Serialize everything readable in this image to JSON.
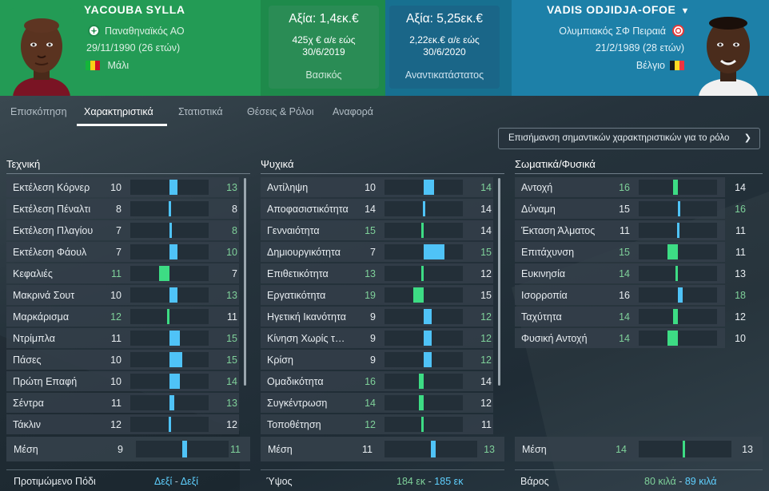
{
  "left_player": {
    "name": "YACOUBA SYLLA",
    "club": "Παναθηναϊκός ΑΟ",
    "dob": "29/11/1990 (26 ετών)",
    "nation": "Μάλι",
    "value": "Αξία: 1,4εκ.€",
    "wage_line1": "425χ € α/ε εώς",
    "wage_line2": "30/6/2019",
    "role": "Βασικός",
    "club_color": "#1e8a4b"
  },
  "right_player": {
    "name": "VADIS ODJIDJA-OFOE",
    "club": "Ολυμπιακός ΣΦ Πειραιά",
    "dob": "21/2/1989 (28 ετών)",
    "nation": "Βέλγιο",
    "value": "Αξία: 5,25εκ.€",
    "wage_line1": "2,22εκ.€ α/ε εώς",
    "wage_line2": "30/6/2020",
    "role": "Αναντικατάστατος",
    "club_color": "#e23a3a"
  },
  "tabs": [
    "Επισκόπηση",
    "Χαρακτηριστικά",
    "Στατιστικά",
    "Θέσεις & Ρόλοι",
    "Αναφορά"
  ],
  "active_tab": "Χαρακτηριστικά",
  "highlight_button": "Επισήμανση σημαντικών χαρακτηριστικών για το ρόλο",
  "columns": [
    {
      "title": "Τεχνική",
      "rows": [
        {
          "name": "Εκτέλεση Κόρνερ",
          "left": 10,
          "right": 13
        },
        {
          "name": "Εκτέλεση Πέναλτι",
          "left": 8,
          "right": 8
        },
        {
          "name": "Εκτέλεση Πλαγίου",
          "left": 7,
          "right": 8
        },
        {
          "name": "Εκτέλεση Φάουλ",
          "left": 7,
          "right": 10
        },
        {
          "name": "Κεφαλιές",
          "left": 11,
          "right": 7
        },
        {
          "name": "Μακρινά Σουτ",
          "left": 10,
          "right": 13
        },
        {
          "name": "Μαρκάρισμα",
          "left": 12,
          "right": 11
        },
        {
          "name": "Ντρίμπλα",
          "left": 11,
          "right": 15
        },
        {
          "name": "Πάσες",
          "left": 10,
          "right": 15
        },
        {
          "name": "Πρώτη Επαφή",
          "left": 10,
          "right": 14
        },
        {
          "name": "Σέντρα",
          "left": 11,
          "right": 13
        },
        {
          "name": "Τάκλιν",
          "left": 12,
          "right": 12
        }
      ],
      "average": {
        "label": "Μέση",
        "left": 9,
        "right": 11
      }
    },
    {
      "title": "Ψυχικά",
      "rows": [
        {
          "name": "Αντίληψη",
          "left": 10,
          "right": 14
        },
        {
          "name": "Αποφασιστικότητα",
          "left": 14,
          "right": 14
        },
        {
          "name": "Γενναιότητα",
          "left": 15,
          "right": 14
        },
        {
          "name": "Δημιουργικότητα",
          "left": 7,
          "right": 15
        },
        {
          "name": "Επιθετικότητα",
          "left": 13,
          "right": 12
        },
        {
          "name": "Εργατικότητα",
          "left": 19,
          "right": 15
        },
        {
          "name": "Ηγετική Ικανότητα",
          "left": 9,
          "right": 12
        },
        {
          "name": "Κίνηση Χωρίς την Μπάλα",
          "left": 9,
          "right": 12
        },
        {
          "name": "Κρίση",
          "left": 9,
          "right": 12
        },
        {
          "name": "Ομαδικότητα",
          "left": 16,
          "right": 14
        },
        {
          "name": "Συγκέντρωση",
          "left": 14,
          "right": 12
        },
        {
          "name": "Τοποθέτηση",
          "left": 12,
          "right": 11
        }
      ],
      "average": {
        "label": "Μέση",
        "left": 11,
        "right": 13
      }
    },
    {
      "title": "Σωματικά/Φυσικά",
      "rows": [
        {
          "name": "Αντοχή",
          "left": 16,
          "right": 14
        },
        {
          "name": "Δύναμη",
          "left": 15,
          "right": 16
        },
        {
          "name": "Έκταση Άλματος",
          "left": 11,
          "right": 11
        },
        {
          "name": "Επιτάχυνση",
          "left": 15,
          "right": 11
        },
        {
          "name": "Ευκινησία",
          "left": 14,
          "right": 13
        },
        {
          "name": "Ισορροπία",
          "left": 16,
          "right": 18
        },
        {
          "name": "Ταχύτητα",
          "left": 14,
          "right": 12
        },
        {
          "name": "Φυσική Αντοχή",
          "left": 14,
          "right": 10
        }
      ],
      "average": {
        "label": "Μέση",
        "left": 14,
        "right": 13
      }
    }
  ],
  "footer": {
    "foot_label": "Προτιμώμενο Πόδι",
    "foot_left": "Δεξί",
    "foot_right": "Δεξί",
    "height_label": "Ύψος",
    "height_left": "184 εκ",
    "height_right": "185 εκ",
    "weight_label": "Βάρος",
    "weight_left": "80 κιλά",
    "weight_right": "89 κιλά",
    "separator": "-"
  },
  "colors": {
    "left_bar": "#3ddc84",
    "right_bar": "#4fc3f7",
    "left_value": "#7fd19a",
    "right_value": "#8fd0f5"
  }
}
